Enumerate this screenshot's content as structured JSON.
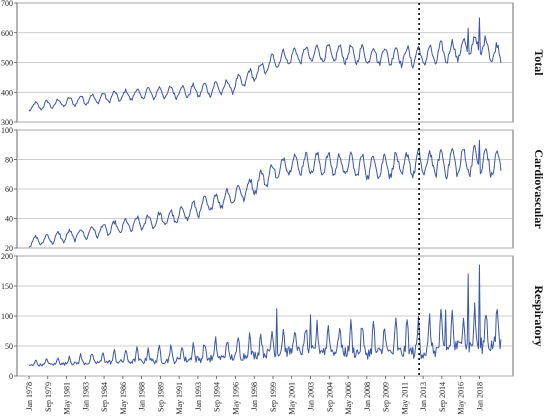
{
  "chart_data": {
    "type": "line",
    "layout": "three vertically stacked panels sharing a monthly time axis",
    "x_start": "Jan 1978",
    "x_end": "Dec 2019",
    "frequency": "monthly",
    "grid": "horizontal gridlines",
    "line_color": "#3b56a8",
    "vline": {
      "label": "Jan 2013",
      "style": "dotted",
      "color": "#000000"
    },
    "xtick_labels": [
      "Jan 1978",
      "Sep 1979",
      "May 1981",
      "Jan 1983",
      "Sep 1984",
      "May 1986",
      "Jan 1988",
      "Sep 1989",
      "May 1991",
      "Jan 1993",
      "Sep 1994",
      "May 1996",
      "Jan 1998",
      "Sep 1999",
      "May 2001",
      "Jan 2003",
      "Sep 2004",
      "May 2006",
      "Jan 2008",
      "Sep 2009",
      "May 2011",
      "Jan 2013",
      "Sep 2014",
      "May 2016",
      "Jan 2018"
    ],
    "panels": [
      {
        "title": "Total",
        "ylim": [
          300,
          700
        ],
        "yticks": [
          300,
          400,
          500,
          600,
          700
        ],
        "trend_points": [
          {
            "x": "Jan 1978",
            "y": 350
          },
          {
            "x": "Jan 1983",
            "y": 375
          },
          {
            "x": "Jan 1988",
            "y": 395
          },
          {
            "x": "Jan 1993",
            "y": 405
          },
          {
            "x": "Jan 1996",
            "y": 420
          },
          {
            "x": "Jan 1998",
            "y": 460
          },
          {
            "x": "Jan 2000",
            "y": 510
          },
          {
            "x": "Jan 2002",
            "y": 525
          },
          {
            "x": "Jan 2004",
            "y": 530
          },
          {
            "x": "Jan 2008",
            "y": 525
          },
          {
            "x": "Jan 2013",
            "y": 520
          },
          {
            "x": "Jan 2016",
            "y": 540
          },
          {
            "x": "Jan 2018",
            "y": 560
          },
          {
            "x": "Dec 2019",
            "y": 520
          }
        ],
        "seasonal_amplitude_start": 12,
        "seasonal_amplitude_end": 35,
        "peaks": [
          {
            "x": "Jan 2017",
            "y": 615
          },
          {
            "x": "Jan 2018",
            "y": 650
          }
        ]
      },
      {
        "title": "Cardiovascular",
        "ylim": [
          20,
          100
        ],
        "yticks": [
          20,
          40,
          60,
          80,
          100
        ],
        "trend_points": [
          {
            "x": "Jan 1978",
            "y": 24
          },
          {
            "x": "Jan 1983",
            "y": 30
          },
          {
            "x": "Jan 1988",
            "y": 37
          },
          {
            "x": "Jan 1991",
            "y": 41
          },
          {
            "x": "Jan 1994",
            "y": 50
          },
          {
            "x": "Jan 1997",
            "y": 58
          },
          {
            "x": "Jan 1999",
            "y": 68
          },
          {
            "x": "Jan 2001",
            "y": 77
          },
          {
            "x": "Jan 2004",
            "y": 77
          },
          {
            "x": "Jan 2008",
            "y": 75
          },
          {
            "x": "Jan 2013",
            "y": 77
          },
          {
            "x": "Jan 2018",
            "y": 79
          },
          {
            "x": "Dec 2019",
            "y": 76
          }
        ],
        "seasonal_amplitude_start": 3,
        "seasonal_amplitude_end": 9,
        "peaks": [
          {
            "x": "Jan 2018",
            "y": 93
          }
        ]
      },
      {
        "title": "Respiratory",
        "ylim": [
          0,
          200
        ],
        "yticks": [
          0,
          50,
          100,
          150,
          200
        ],
        "trend_points": [
          {
            "x": "Jan 1978",
            "y": 20
          },
          {
            "x": "Jan 1985",
            "y": 28
          },
          {
            "x": "Jan 1991",
            "y": 33
          },
          {
            "x": "Jan 1996",
            "y": 40
          },
          {
            "x": "Jan 2000",
            "y": 50
          },
          {
            "x": "Jan 2004",
            "y": 55
          },
          {
            "x": "Jan 2008",
            "y": 52
          },
          {
            "x": "Jan 2013",
            "y": 55
          },
          {
            "x": "Jan 2016",
            "y": 65
          },
          {
            "x": "Dec 2019",
            "y": 70
          }
        ],
        "seasonal_amplitude_start": 5,
        "seasonal_amplitude_end": 40,
        "peaks": [
          {
            "x": "Jan 2000",
            "y": 112
          },
          {
            "x": "Jan 2003",
            "y": 102
          },
          {
            "x": "Jan 2015",
            "y": 110
          },
          {
            "x": "Jan 2017",
            "y": 170
          },
          {
            "x": "Jan 2018",
            "y": 185
          }
        ]
      }
    ]
  }
}
